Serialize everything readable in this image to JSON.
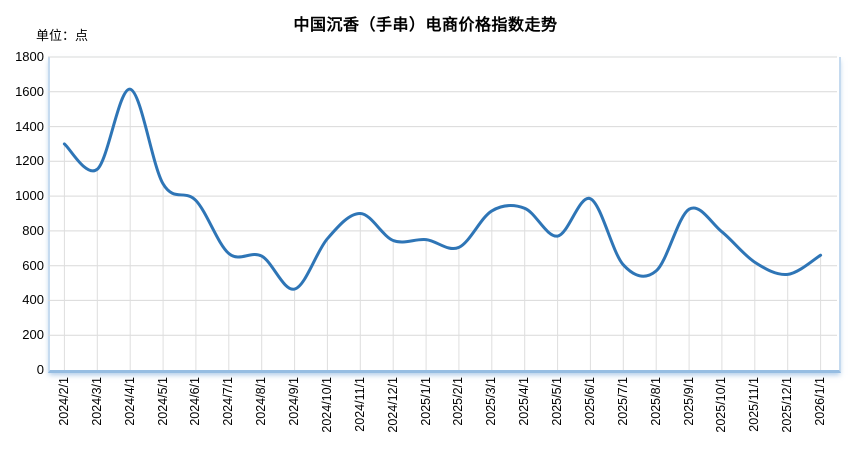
{
  "title": "中国沉香（手串）电商价格指数走势",
  "unit_label": "单位：点",
  "colors": {
    "line": "#2E75B6",
    "gridline": "#D9D9D9",
    "drop_line": "#DEDEDE",
    "plot_border": "#9DC3E6",
    "text": "#000000",
    "background": "#FFFFFF"
  },
  "chart_data": {
    "type": "line",
    "title": "中国沉香（手串）电商价格指数走势",
    "ylabel": "点",
    "xlabel": "",
    "ylim": [
      0,
      1800
    ],
    "y_tick_step": 200,
    "y_tick_labels": [
      "0",
      "200",
      "400",
      "600",
      "800",
      "1000",
      "1200",
      "1400",
      "1600",
      "1800"
    ],
    "grid": "horizontal gridlines + vertical drop lines from each point",
    "legend": "none",
    "smooth": true,
    "line_color": "#2E75B6",
    "categories": [
      "2024/2/1",
      "2024/3/1",
      "2024/4/1",
      "2024/5/1",
      "2024/6/1",
      "2024/7/1",
      "2024/8/1",
      "2024/9/1",
      "2024/10/1",
      "2024/11/1",
      "2024/12/1",
      "2025/1/1",
      "2025/2/1",
      "2025/3/1",
      "2025/4/1",
      "2025/5/1",
      "2025/6/1",
      "2025/7/1",
      "2025/8/1",
      "2025/9/1",
      "2025/10/1",
      "2025/11/1",
      "2025/12/1",
      "2026/1/1"
    ],
    "values": [
      1300,
      1155,
      1615,
      1070,
      975,
      670,
      655,
      465,
      755,
      900,
      745,
      750,
      705,
      915,
      930,
      770,
      985,
      605,
      570,
      925,
      795,
      620,
      550,
      660
    ]
  }
}
